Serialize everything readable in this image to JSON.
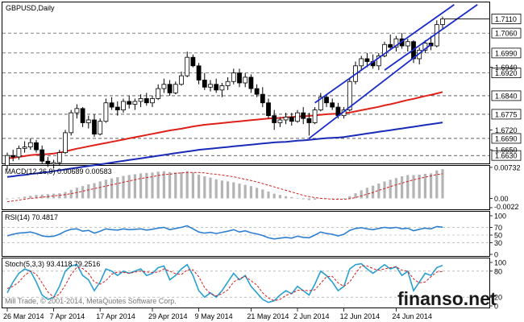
{
  "chart_data": [
    {
      "type": "candlestick",
      "title": "GBPUSD,Daily",
      "current_price": "1.7110",
      "x_tick_labels": [
        "26 Mar 2014",
        "7 Apr 2014",
        "17 Apr 2014",
        "29 Apr 2014",
        "9 May 2014",
        "21 May 2014",
        "2 Jun 2014",
        "12 Jun 2014",
        "24 Jun 2014"
      ],
      "price_tick_labels": [
        "1.7110",
        "1.7060",
        "1.6990",
        "1.6920",
        "1.6840",
        "1.6775",
        "1.6690",
        "1.6630",
        "1.6940",
        "1.6720",
        "1.6650"
      ],
      "boxed_price_levels": [
        1.706,
        1.699,
        1.692,
        1.684,
        1.6775,
        1.669,
        1.663
      ],
      "ylim": [
        1.6605,
        1.7165
      ],
      "ohlc": [
        [
          1.6595,
          1.664,
          1.658,
          1.663
        ],
        [
          1.663,
          1.665,
          1.661,
          1.6625
        ],
        [
          1.6625,
          1.6665,
          1.6615,
          1.6655
        ],
        [
          1.6655,
          1.668,
          1.664,
          1.666
        ],
        [
          1.666,
          1.669,
          1.665,
          1.6675
        ],
        [
          1.6675,
          1.6685,
          1.664,
          1.665
        ],
        [
          1.665,
          1.6665,
          1.66,
          1.661
        ],
        [
          1.661,
          1.6625,
          1.659,
          1.66
        ],
        [
          1.66,
          1.6615,
          1.6585,
          1.6605
        ],
        [
          1.6605,
          1.665,
          1.6595,
          1.664
        ],
        [
          1.664,
          1.672,
          1.6635,
          1.671
        ],
        [
          1.671,
          1.679,
          1.67,
          1.678
        ],
        [
          1.678,
          1.681,
          1.676,
          1.6795
        ],
        [
          1.6795,
          1.68,
          1.673,
          1.6745
        ],
        [
          1.6745,
          1.677,
          1.6725,
          1.6755
        ],
        [
          1.6755,
          1.6775,
          1.6695,
          1.6705
        ],
        [
          1.6705,
          1.676,
          1.67,
          1.675
        ],
        [
          1.675,
          1.683,
          1.6745,
          1.6815
        ],
        [
          1.6815,
          1.6835,
          1.679,
          1.68
        ],
        [
          1.68,
          1.682,
          1.677,
          1.679
        ],
        [
          1.679,
          1.683,
          1.678,
          1.682
        ],
        [
          1.682,
          1.684,
          1.6795,
          1.681
        ],
        [
          1.681,
          1.683,
          1.679,
          1.682
        ],
        [
          1.682,
          1.6845,
          1.68,
          1.683
        ],
        [
          1.683,
          1.685,
          1.6805,
          1.6815
        ],
        [
          1.6815,
          1.684,
          1.68,
          1.683
        ],
        [
          1.683,
          1.688,
          1.6825,
          1.6865
        ],
        [
          1.6865,
          1.69,
          1.685,
          1.688
        ],
        [
          1.688,
          1.6895,
          1.684,
          1.685
        ],
        [
          1.685,
          1.689,
          1.6845,
          1.688
        ],
        [
          1.688,
          1.6925,
          1.6875,
          1.691
        ],
        [
          1.691,
          1.6995,
          1.6905,
          1.6975
        ],
        [
          1.6975,
          1.6985,
          1.694,
          1.6945
        ],
        [
          1.6945,
          1.6955,
          1.688,
          1.6895
        ],
        [
          1.6895,
          1.692,
          1.686,
          1.687
        ],
        [
          1.687,
          1.6895,
          1.6855,
          1.688
        ],
        [
          1.688,
          1.69,
          1.685,
          1.686
        ],
        [
          1.686,
          1.6885,
          1.6835,
          1.6875
        ],
        [
          1.6875,
          1.6905,
          1.686,
          1.689
        ],
        [
          1.689,
          1.6935,
          1.688,
          1.692
        ],
        [
          1.692,
          1.6935,
          1.687,
          1.6885
        ],
        [
          1.6885,
          1.692,
          1.687,
          1.6905
        ],
        [
          1.6905,
          1.6915,
          1.685,
          1.6865
        ],
        [
          1.6865,
          1.688,
          1.6835,
          1.6845
        ],
        [
          1.6845,
          1.687,
          1.68,
          1.6815
        ],
        [
          1.6815,
          1.683,
          1.676,
          1.677
        ],
        [
          1.677,
          1.679,
          1.672,
          1.6745
        ],
        [
          1.6745,
          1.6765,
          1.673,
          1.6755
        ],
        [
          1.6755,
          1.678,
          1.674,
          1.6765
        ],
        [
          1.6765,
          1.678,
          1.6735,
          1.675
        ],
        [
          1.675,
          1.679,
          1.6745,
          1.678
        ],
        [
          1.678,
          1.68,
          1.674,
          1.676
        ],
        [
          1.676,
          1.678,
          1.67,
          1.6745
        ],
        [
          1.6745,
          1.68,
          1.674,
          1.679
        ],
        [
          1.679,
          1.685,
          1.6785,
          1.6835
        ],
        [
          1.6835,
          1.6845,
          1.68,
          1.6815
        ],
        [
          1.6815,
          1.683,
          1.679,
          1.68
        ],
        [
          1.68,
          1.6815,
          1.676,
          1.677
        ],
        [
          1.677,
          1.68,
          1.676,
          1.679
        ],
        [
          1.679,
          1.69,
          1.6785,
          1.689
        ],
        [
          1.689,
          1.696,
          1.688,
          1.6945
        ],
        [
          1.6945,
          1.698,
          1.693,
          1.697
        ],
        [
          1.697,
          1.699,
          1.694,
          1.696
        ],
        [
          1.696,
          1.6985,
          1.6935,
          1.6945
        ],
        [
          1.6945,
          1.699,
          1.693,
          1.698
        ],
        [
          1.698,
          1.703,
          1.6975,
          1.702
        ],
        [
          1.702,
          1.7055,
          1.7,
          1.701
        ],
        [
          1.701,
          1.705,
          1.6995,
          1.704
        ],
        [
          1.704,
          1.706,
          1.7005,
          1.7015
        ],
        [
          1.7015,
          1.704,
          1.6995,
          1.703
        ],
        [
          1.703,
          1.7035,
          1.6955,
          1.697
        ],
        [
          1.697,
          1.701,
          1.695,
          1.7
        ],
        [
          1.7,
          1.7035,
          1.699,
          1.7025
        ],
        [
          1.7025,
          1.705,
          1.7,
          1.7015
        ],
        [
          1.7015,
          1.7105,
          1.701,
          1.709
        ],
        [
          1.709,
          1.7118,
          1.7075,
          1.711
        ]
      ],
      "ma_red": [
        1.662,
        1.6622,
        1.6625,
        1.6628,
        1.6631,
        1.6633,
        1.6634,
        1.6635,
        1.6637,
        1.664,
        1.6644,
        1.6649,
        1.6654,
        1.6658,
        1.6662,
        1.6666,
        1.667,
        1.6674,
        1.6678,
        1.6682,
        1.6686,
        1.669,
        1.6694,
        1.6698,
        1.6702,
        1.6706,
        1.671,
        1.6714,
        1.6718,
        1.6721,
        1.6724,
        1.6728,
        1.6732,
        1.6735,
        1.6738,
        1.674,
        1.6742,
        1.6744,
        1.6746,
        1.6748,
        1.675,
        1.6752,
        1.6754,
        1.6756,
        1.6758,
        1.676,
        1.6761,
        1.6762,
        1.6764,
        1.6765,
        1.6767,
        1.6768,
        1.6769,
        1.6771,
        1.6773,
        1.6775,
        1.6776,
        1.6777,
        1.6778,
        1.6781,
        1.6785,
        1.6789,
        1.6793,
        1.6797,
        1.6801,
        1.6806,
        1.681,
        1.6815,
        1.682,
        1.6825,
        1.6829,
        1.6834,
        1.6839,
        1.6843,
        1.6848,
        1.6853
      ],
      "ma_blue": [
        1.6555,
        1.6557,
        1.656,
        1.6562,
        1.6565,
        1.6567,
        1.657,
        1.6572,
        1.6575,
        1.6578,
        1.6581,
        1.6584,
        1.6587,
        1.659,
        1.6593,
        1.6596,
        1.6599,
        1.6602,
        1.6605,
        1.6608,
        1.6611,
        1.6614,
        1.6617,
        1.662,
        1.6623,
        1.6626,
        1.6629,
        1.6632,
        1.6635,
        1.6638,
        1.6641,
        1.6644,
        1.6647,
        1.665,
        1.6652,
        1.6654,
        1.6656,
        1.6658,
        1.666,
        1.6662,
        1.6664,
        1.6666,
        1.6668,
        1.667,
        1.6672,
        1.6674,
        1.6676,
        1.6677,
        1.6678,
        1.668,
        1.6682,
        1.6683,
        1.6685,
        1.6687,
        1.6689,
        1.6691,
        1.6692,
        1.6693,
        1.6695,
        1.6698,
        1.6701,
        1.6704,
        1.6707,
        1.671,
        1.6713,
        1.6716,
        1.6719,
        1.6722,
        1.6725,
        1.6728,
        1.6731,
        1.6734,
        1.6737,
        1.674,
        1.6743,
        1.6746
      ],
      "trendlines": [
        {
          "from": [
            52,
            1.669
          ],
          "to": [
            73,
            1.702
          ]
        },
        {
          "from": [
            53,
            1.6815
          ],
          "to": [
            77,
            1.716
          ]
        },
        {
          "from": [
            65,
            1.693
          ],
          "to": [
            81,
            1.716
          ]
        }
      ],
      "grid": false
    },
    {
      "type": "bar",
      "title": "MACD(12,26,9) 0.00689 0.00583",
      "y_tick_labels": [
        "0.00732",
        "0.00",
        "-0.0022"
      ],
      "ylim": [
        -0.0022,
        0.0073
      ],
      "histogram": [
        -0.0002,
        0.0,
        0.0002,
        0.0004,
        0.0006,
        0.0008,
        0.0009,
        0.001,
        0.0011,
        0.0012,
        0.0015,
        0.002,
        0.0025,
        0.0029,
        0.0033,
        0.0036,
        0.004,
        0.0044,
        0.0047,
        0.005,
        0.0053,
        0.0055,
        0.0057,
        0.0059,
        0.006,
        0.0061,
        0.0063,
        0.0064,
        0.0062,
        0.0061,
        0.0062,
        0.0064,
        0.0061,
        0.0056,
        0.0052,
        0.0049,
        0.0045,
        0.0042,
        0.004,
        0.0038,
        0.0035,
        0.0032,
        0.0029,
        0.0025,
        0.0021,
        0.0016,
        0.0011,
        0.0008,
        0.0005,
        0.0003,
        0.0001,
        -0.0002,
        -0.0004,
        -0.0003,
        -0.0001,
        0.0,
        0.0,
        -0.0001,
        -0.0001,
        0.0005,
        0.0012,
        0.0019,
        0.0025,
        0.003,
        0.0035,
        0.004,
        0.0044,
        0.0048,
        0.0052,
        0.0055,
        0.0055,
        0.0056,
        0.0058,
        0.0059,
        0.0066,
        0.0069
      ],
      "signal": [
        -0.0008,
        -0.0006,
        -0.0004,
        -0.0002,
        0.0,
        0.0001,
        0.0003,
        0.0004,
        0.0006,
        0.0007,
        0.0009,
        0.0011,
        0.0014,
        0.0017,
        0.002,
        0.0023,
        0.0026,
        0.0029,
        0.0032,
        0.0035,
        0.0038,
        0.0041,
        0.0044,
        0.0047,
        0.0049,
        0.0051,
        0.0054,
        0.0056,
        0.0057,
        0.0059,
        0.006,
        0.0061,
        0.0061,
        0.0061,
        0.006,
        0.0058,
        0.0057,
        0.0055,
        0.0053,
        0.0051,
        0.0048,
        0.0045,
        0.0042,
        0.0039,
        0.0035,
        0.0031,
        0.0027,
        0.0023,
        0.0019,
        0.0015,
        0.0011,
        0.0007,
        0.0004,
        0.0002,
        0.0,
        -0.0001,
        -0.0002,
        -0.0002,
        -0.0002,
        -0.0001,
        0.0002,
        0.0006,
        0.001,
        0.0014,
        0.0019,
        0.0023,
        0.0028,
        0.0032,
        0.0036,
        0.004,
        0.0044,
        0.0047,
        0.005,
        0.0053,
        0.0056,
        0.0058
      ]
    },
    {
      "type": "line",
      "title": "RSI(14) 70.4817",
      "y_tick_labels": [
        "100",
        "70",
        "50",
        "30",
        "0"
      ],
      "ylim": [
        0,
        100
      ],
      "levels": [
        70,
        50,
        30
      ],
      "series": [
        {
          "values": [
            48,
            52,
            55,
            56,
            58,
            54,
            48,
            46,
            47,
            52,
            60,
            65,
            66,
            60,
            62,
            55,
            60,
            66,
            64,
            63,
            66,
            64,
            65,
            66,
            63,
            65,
            68,
            70,
            64,
            67,
            70,
            74,
            66,
            58,
            55,
            57,
            54,
            57,
            60,
            64,
            58,
            61,
            56,
            53,
            49,
            43,
            40,
            42,
            44,
            42,
            47,
            44,
            43,
            50,
            58,
            54,
            52,
            48,
            52,
            62,
            67,
            69,
            66,
            64,
            67,
            70,
            68,
            70,
            66,
            68,
            61,
            65,
            68,
            66,
            72,
            70.4817
          ]
        }
      ]
    },
    {
      "type": "line",
      "title": "Stoch(5,3,3) 93.4118 79.2516",
      "y_tick_labels": [
        "100",
        "80",
        "20",
        "0"
      ],
      "ylim": [
        0,
        100
      ],
      "levels": [
        80,
        20
      ],
      "series": [
        {
          "values": [
            30,
            55,
            75,
            85,
            80,
            55,
            25,
            15,
            20,
            45,
            80,
            92,
            95,
            70,
            60,
            35,
            55,
            85,
            80,
            70,
            80,
            75,
            80,
            85,
            70,
            75,
            88,
            92,
            60,
            70,
            85,
            95,
            70,
            35,
            20,
            30,
            20,
            35,
            55,
            75,
            60,
            70,
            45,
            30,
            15,
            8,
            12,
            25,
            35,
            28,
            45,
            35,
            25,
            50,
            80,
            70,
            55,
            35,
            45,
            85,
            95,
            97,
            85,
            75,
            85,
            95,
            85,
            90,
            70,
            80,
            35,
            55,
            75,
            70,
            88,
            93.4118
          ]
        },
        {
          "values": [
            40,
            45,
            55,
            70,
            80,
            73,
            53,
            32,
            20,
            27,
            48,
            72,
            89,
            86,
            75,
            55,
            50,
            58,
            73,
            78,
            77,
            75,
            78,
            80,
            78,
            77,
            78,
            85,
            80,
            74,
            72,
            83,
            83,
            67,
            42,
            28,
            23,
            28,
            37,
            55,
            63,
            68,
            58,
            48,
            30,
            18,
            12,
            15,
            24,
            29,
            36,
            36,
            35,
            37,
            52,
            67,
            68,
            53,
            45,
            55,
            75,
            92,
            92,
            86,
            82,
            85,
            88,
            90,
            82,
            80,
            62,
            53,
            55,
            67,
            78,
            79.2516
          ]
        }
      ]
    }
  ],
  "footer": {
    "copyright": "Mill Trade, © 2001-2014, MetaQuotes Software Corp.",
    "watermark": "finanso.net"
  },
  "colors": {
    "bull_candle": "#ffffff",
    "bear_candle": "#000000",
    "ma_red": "#e0201a",
    "ma_blue": "#1a2bb8",
    "trendline": "#1a2bcc",
    "macd_hist": "#b4b4b4",
    "macd_signal": "#d21e1e",
    "rsi": "#2f7fd0",
    "stoch_main": "#2aa0d0",
    "stoch_signal": "#d21e1e"
  }
}
